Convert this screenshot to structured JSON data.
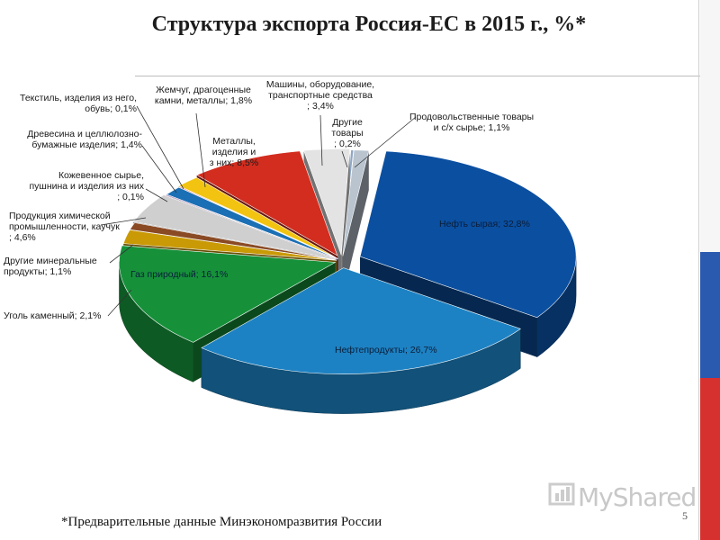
{
  "page": {
    "footnote": "*Предварительные данные Минэкономразвития России",
    "page_number": "5",
    "watermark": "MyShared"
  },
  "colors": {
    "flag_white": "#f6f6f6",
    "flag_blue": "#2a5ab0",
    "flag_red": "#d6302f"
  },
  "chart_data": {
    "type": "pie",
    "title": "Структура экспорта Россия-ЕС в 2015 г., %*",
    "three_d": true,
    "slices": [
      {
        "label": "Нефть сырая",
        "value": 32.8,
        "label_text": "Нефть сырая; 32,8%",
        "color": "#0b4fa0"
      },
      {
        "label": "Нефтепродукты",
        "value": 26.7,
        "label_text": "Нефтепродукты; 26,7%",
        "color": "#1d82c3"
      },
      {
        "label": "Газ природный",
        "value": 16.1,
        "label_text": "Газ природный; 16,1%",
        "color": "#16913a"
      },
      {
        "label": "Уголь каменный",
        "value": 2.1,
        "label_text": "Уголь каменный; 2,1%",
        "color": "#c99a06"
      },
      {
        "label": "Другие минеральные продукты",
        "value": 1.1,
        "label_text": "Другие минеральные продукты; 1,1%",
        "color": "#8a4a24"
      },
      {
        "label": "Продукция химической промышленности, каучук",
        "value": 4.6,
        "label_text": "Продукция химической промышленности, каучук; 4,6%",
        "color": "#cfcfcf"
      },
      {
        "label": "Кожевенное сырье, пушнина и изделия из них",
        "value": 0.1,
        "label_text": "Кожевенное сырье, пушнина и изделия из них; 0,1%",
        "color": "#6a2f8a"
      },
      {
        "label": "Древесина и целлюлозно-бумажные изделия",
        "value": 1.4,
        "label_text": "Древесина и целлюлозно-бумажные изделия; 1,4%",
        "color": "#1a6fb5"
      },
      {
        "label": "Текстиль, изделия из него, обувь",
        "value": 0.1,
        "label_text": "Текстиль, изделия из него, обувь; 0,1%",
        "color": "#d1282a"
      },
      {
        "label": "Жемчуг, драгоценные камни, металлы",
        "value": 1.8,
        "label_text": "Жемчуг, драгоценные камни, металлы; 1,8%",
        "color": "#f2c411"
      },
      {
        "label": "Металлы, изделия из них",
        "value": 8.5,
        "label_text": "Металлы, изделия из них; 8,5%",
        "color": "#d22d1f"
      },
      {
        "label": "Машины, оборудование, транспортные средства",
        "value": 3.4,
        "label_text": "Машины, оборудование, транспортные средства; 3,4%",
        "color": "#e3e3e3"
      },
      {
        "label": "Другие товары",
        "value": 0.2,
        "label_text": "Другие товары; 0,2%",
        "color": "#8fa7c4"
      },
      {
        "label": "Продовольственные товары и с/х сырье",
        "value": 1.1,
        "label_text": "Продовольственные товары и с/х сырье; 1,1%",
        "color": "#b9c4cf"
      }
    ]
  }
}
